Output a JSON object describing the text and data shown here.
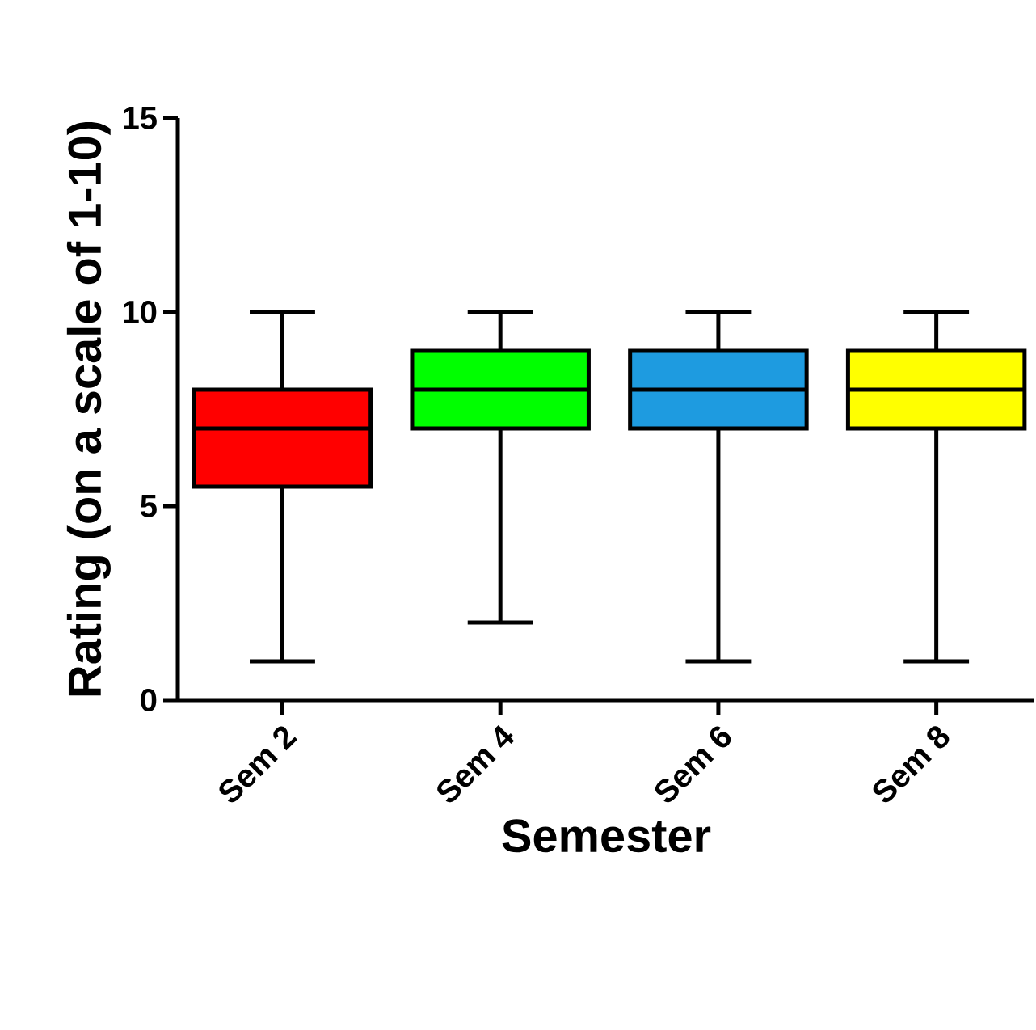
{
  "chart_data": {
    "type": "box",
    "xlabel": "Semester",
    "ylabel": "Rating (on a scale of 1-10)",
    "categories": [
      "Sem 2",
      "Sem 4",
      "Sem 6",
      "Sem 8"
    ],
    "boxes": [
      {
        "low": 1,
        "q1": 5.5,
        "median": 7,
        "q3": 8,
        "high": 10
      },
      {
        "low": 2,
        "q1": 7,
        "median": 8,
        "q3": 9,
        "high": 10
      },
      {
        "low": 1,
        "q1": 7,
        "median": 8,
        "q3": 9,
        "high": 10
      },
      {
        "low": 1,
        "q1": 7,
        "median": 8,
        "q3": 9,
        "high": 10
      }
    ],
    "colors": [
      "#ff0000",
      "#00ff00",
      "#1e9be0",
      "#ffff00"
    ],
    "ylim": [
      0,
      15
    ],
    "yticks": [
      0,
      5,
      10,
      15
    ],
    "grid": false
  }
}
